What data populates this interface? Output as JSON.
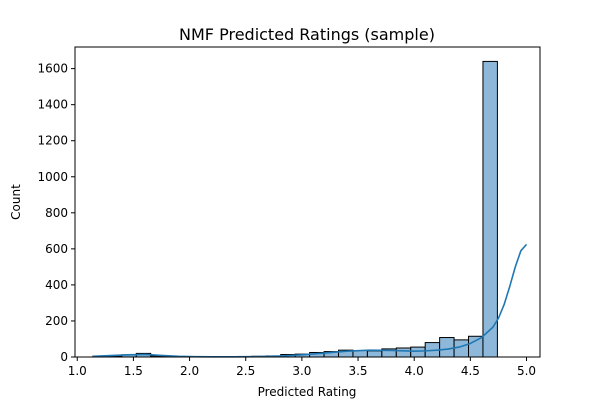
{
  "chart_data": {
    "type": "histogram",
    "title": "NMF Predicted Ratings (sample)",
    "xlabel": "Predicted Rating",
    "ylabel": "Count",
    "xlim": [
      0.98,
      5.12
    ],
    "ylim": [
      0,
      1720
    ],
    "xticks": [
      1.0,
      1.5,
      2.0,
      2.5,
      3.0,
      3.5,
      4.0,
      4.5,
      5.0
    ],
    "xtick_labels": [
      "1.0",
      "1.5",
      "2.0",
      "2.5",
      "3.0",
      "3.5",
      "4.0",
      "4.5",
      "5.0"
    ],
    "yticks": [
      0,
      200,
      400,
      600,
      800,
      1000,
      1200,
      1400,
      1600
    ],
    "ytick_labels": [
      "0",
      "200",
      "400",
      "600",
      "800",
      "1000",
      "1200",
      "1400",
      "1600"
    ],
    "bin_start": 1.14,
    "bin_width": 0.1286,
    "bin_counts": [
      5,
      5,
      12,
      20,
      6,
      3,
      2,
      2,
      2,
      2,
      3,
      4,
      6,
      14,
      16,
      25,
      30,
      38,
      36,
      34,
      45,
      50,
      55,
      80,
      108,
      95,
      115,
      1640
    ],
    "kde": {
      "x": [
        1.14,
        1.3,
        1.45,
        1.6,
        1.75,
        1.9,
        2.05,
        2.2,
        2.4,
        2.6,
        2.8,
        3.0,
        3.2,
        3.4,
        3.6,
        3.8,
        4.0,
        4.1,
        4.2,
        4.3,
        4.4,
        4.5,
        4.6,
        4.7,
        4.75,
        4.8,
        4.85,
        4.9,
        4.95,
        5.0
      ],
      "y": [
        4,
        8,
        12,
        14,
        9,
        4,
        2,
        1,
        1,
        2,
        5,
        12,
        22,
        32,
        38,
        36,
        32,
        34,
        38,
        44,
        55,
        75,
        108,
        165,
        215,
        290,
        390,
        500,
        590,
        625
      ]
    },
    "colors": {
      "bar_fill": "#8db8d9",
      "bar_edge": "#000000",
      "kde_line": "#1f77b4"
    }
  }
}
